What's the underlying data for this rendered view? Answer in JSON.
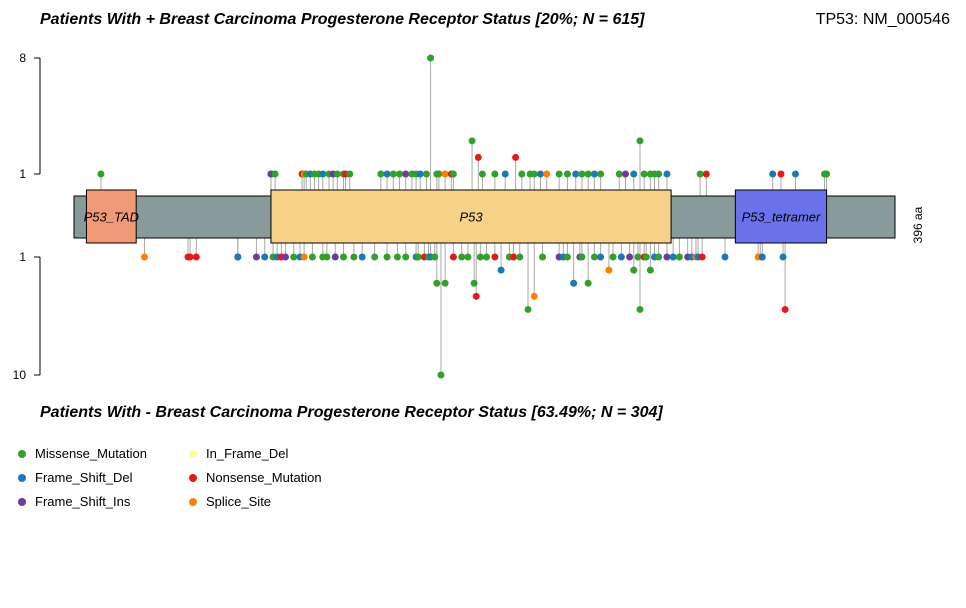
{
  "header": {
    "title_top": "Patients With + Breast Carcinoma Progesterone Receptor Status [20%; N = 615]",
    "title_bottom": "Patients With - Breast Carcinoma Progesterone Receptor Status [63.49%; N = 304]",
    "gene": "TP53: NM_000546"
  },
  "chart_data": {
    "type": "lollipop",
    "protein_length": 396,
    "protein_length_label": "396 aa",
    "top_axis": {
      "ticks": [
        1,
        8
      ],
      "labels": [
        "1",
        "8"
      ],
      "max": 8
    },
    "bottom_axis": {
      "ticks": [
        1,
        10
      ],
      "labels": [
        "1",
        "10"
      ],
      "max": 10
    },
    "colors": {
      "Missense_Mutation": "#33a02c",
      "Frame_Shift_Del": "#1f78b4",
      "Frame_Shift_Ins": "#6a3d9a",
      "In_Frame_Del": "#ffff99",
      "Nonsense_Mutation": "#e31a1c",
      "Splice_Site": "#ff7f00"
    },
    "backbone_color": "#889a99",
    "domains": [
      {
        "name": "P53_TAD",
        "start": 6,
        "end": 30,
        "color": "#f09a77"
      },
      {
        "name": "P53",
        "start": 95,
        "end": 288,
        "color": "#f5d287"
      },
      {
        "name": "P53_tetramer",
        "start": 319,
        "end": 363,
        "color": "#6a72eb"
      }
    ],
    "top_mutations": [
      {
        "pos": 13,
        "count": 1,
        "type": "Missense_Mutation"
      },
      {
        "pos": 95,
        "count": 1,
        "type": "Frame_Shift_Del"
      },
      {
        "pos": 95,
        "count": 1,
        "type": "Frame_Shift_Ins"
      },
      {
        "pos": 97,
        "count": 1,
        "type": "Missense_Mutation"
      },
      {
        "pos": 110,
        "count": 1,
        "type": "Nonsense_Mutation"
      },
      {
        "pos": 111,
        "count": 1,
        "type": "Splice_Site"
      },
      {
        "pos": 112,
        "count": 1,
        "type": "Missense_Mutation"
      },
      {
        "pos": 114,
        "count": 1,
        "type": "Frame_Shift_Del"
      },
      {
        "pos": 116,
        "count": 1,
        "type": "Missense_Mutation"
      },
      {
        "pos": 118,
        "count": 1,
        "type": "Missense_Mutation"
      },
      {
        "pos": 120,
        "count": 1,
        "type": "Frame_Shift_Del"
      },
      {
        "pos": 123,
        "count": 1,
        "type": "Missense_Mutation"
      },
      {
        "pos": 125,
        "count": 1,
        "type": "Frame_Shift_Ins"
      },
      {
        "pos": 127,
        "count": 1,
        "type": "Missense_Mutation"
      },
      {
        "pos": 130,
        "count": 1,
        "type": "Missense_Mutation"
      },
      {
        "pos": 131,
        "count": 1,
        "type": "Nonsense_Mutation"
      },
      {
        "pos": 133,
        "count": 1,
        "type": "Missense_Mutation"
      },
      {
        "pos": 148,
        "count": 1,
        "type": "Missense_Mutation"
      },
      {
        "pos": 151,
        "count": 1,
        "type": "Frame_Shift_Del"
      },
      {
        "pos": 154,
        "count": 1,
        "type": "Missense_Mutation"
      },
      {
        "pos": 157,
        "count": 1,
        "type": "Missense_Mutation"
      },
      {
        "pos": 160,
        "count": 1,
        "type": "Frame_Shift_Ins"
      },
      {
        "pos": 163,
        "count": 1,
        "type": "Missense_Mutation"
      },
      {
        "pos": 165,
        "count": 1,
        "type": "Missense_Mutation"
      },
      {
        "pos": 167,
        "count": 1,
        "type": "Frame_Shift_Del"
      },
      {
        "pos": 170,
        "count": 1,
        "type": "Missense_Mutation"
      },
      {
        "pos": 172,
        "count": 8,
        "type": "Missense_Mutation"
      },
      {
        "pos": 175,
        "count": 1,
        "type": "Missense_Mutation"
      },
      {
        "pos": 176,
        "count": 1,
        "type": "Missense_Mutation"
      },
      {
        "pos": 179,
        "count": 1,
        "type": "Splice_Site"
      },
      {
        "pos": 182,
        "count": 1,
        "type": "Nonsense_Mutation"
      },
      {
        "pos": 183,
        "count": 1,
        "type": "Missense_Mutation"
      },
      {
        "pos": 192,
        "count": 3,
        "type": "Missense_Mutation"
      },
      {
        "pos": 195,
        "count": 2,
        "type": "Nonsense_Mutation"
      },
      {
        "pos": 197,
        "count": 1,
        "type": "Missense_Mutation"
      },
      {
        "pos": 203,
        "count": 1,
        "type": "Missense_Mutation"
      },
      {
        "pos": 208,
        "count": 1,
        "type": "Frame_Shift_Del"
      },
      {
        "pos": 213,
        "count": 2,
        "type": "Nonsense_Mutation"
      },
      {
        "pos": 216,
        "count": 1,
        "type": "Missense_Mutation"
      },
      {
        "pos": 220,
        "count": 1,
        "type": "Missense_Mutation"
      },
      {
        "pos": 222,
        "count": 1,
        "type": "Missense_Mutation"
      },
      {
        "pos": 225,
        "count": 1,
        "type": "Frame_Shift_Del"
      },
      {
        "pos": 228,
        "count": 1,
        "type": "Splice_Site"
      },
      {
        "pos": 234,
        "count": 1,
        "type": "Missense_Mutation"
      },
      {
        "pos": 238,
        "count": 1,
        "type": "Missense_Mutation"
      },
      {
        "pos": 242,
        "count": 1,
        "type": "Frame_Shift_Del"
      },
      {
        "pos": 245,
        "count": 1,
        "type": "Missense_Mutation"
      },
      {
        "pos": 248,
        "count": 1,
        "type": "Missense_Mutation"
      },
      {
        "pos": 251,
        "count": 1,
        "type": "Frame_Shift_Del"
      },
      {
        "pos": 254,
        "count": 1,
        "type": "Missense_Mutation"
      },
      {
        "pos": 263,
        "count": 1,
        "type": "Missense_Mutation"
      },
      {
        "pos": 266,
        "count": 1,
        "type": "Frame_Shift_Ins"
      },
      {
        "pos": 270,
        "count": 1,
        "type": "Frame_Shift_Del"
      },
      {
        "pos": 273,
        "count": 3,
        "type": "Missense_Mutation"
      },
      {
        "pos": 275,
        "count": 1,
        "type": "Missense_Mutation"
      },
      {
        "pos": 278,
        "count": 1,
        "type": "Missense_Mutation"
      },
      {
        "pos": 280,
        "count": 1,
        "type": "Missense_Mutation"
      },
      {
        "pos": 282,
        "count": 1,
        "type": "Missense_Mutation"
      },
      {
        "pos": 286,
        "count": 1,
        "type": "Frame_Shift_Del"
      },
      {
        "pos": 302,
        "count": 1,
        "type": "Missense_Mutation"
      },
      {
        "pos": 305,
        "count": 1,
        "type": "Nonsense_Mutation"
      },
      {
        "pos": 337,
        "count": 1,
        "type": "Frame_Shift_Del"
      },
      {
        "pos": 341,
        "count": 1,
        "type": "Nonsense_Mutation"
      },
      {
        "pos": 348,
        "count": 1,
        "type": "Frame_Shift_Del"
      },
      {
        "pos": 362,
        "count": 1,
        "type": "Missense_Mutation"
      },
      {
        "pos": 363,
        "count": 1,
        "type": "Missense_Mutation"
      }
    ],
    "bottom_mutations": [
      {
        "pos": 34,
        "count": 1,
        "type": "Splice_Site"
      },
      {
        "pos": 55,
        "count": 1,
        "type": "Nonsense_Mutation"
      },
      {
        "pos": 56,
        "count": 1,
        "type": "Nonsense_Mutation"
      },
      {
        "pos": 59,
        "count": 1,
        "type": "Nonsense_Mutation"
      },
      {
        "pos": 79,
        "count": 1,
        "type": "Frame_Shift_Ins"
      },
      {
        "pos": 79,
        "count": 1,
        "type": "Frame_Shift_Del"
      },
      {
        "pos": 88,
        "count": 1,
        "type": "Frame_Shift_Ins"
      },
      {
        "pos": 92,
        "count": 1,
        "type": "Frame_Shift_Del"
      },
      {
        "pos": 96,
        "count": 1,
        "type": "Missense_Mutation"
      },
      {
        "pos": 98,
        "count": 1,
        "type": "Frame_Shift_Del"
      },
      {
        "pos": 100,
        "count": 1,
        "type": "Nonsense_Mutation"
      },
      {
        "pos": 102,
        "count": 1,
        "type": "Frame_Shift_Ins"
      },
      {
        "pos": 106,
        "count": 1,
        "type": "Missense_Mutation"
      },
      {
        "pos": 109,
        "count": 1,
        "type": "Frame_Shift_Del"
      },
      {
        "pos": 111,
        "count": 1,
        "type": "Splice_Site"
      },
      {
        "pos": 115,
        "count": 1,
        "type": "Missense_Mutation"
      },
      {
        "pos": 120,
        "count": 1,
        "type": "Missense_Mutation"
      },
      {
        "pos": 122,
        "count": 1,
        "type": "Missense_Mutation"
      },
      {
        "pos": 126,
        "count": 1,
        "type": "Frame_Shift_Ins"
      },
      {
        "pos": 130,
        "count": 1,
        "type": "Missense_Mutation"
      },
      {
        "pos": 135,
        "count": 1,
        "type": "Missense_Mutation"
      },
      {
        "pos": 139,
        "count": 1,
        "type": "Frame_Shift_Del"
      },
      {
        "pos": 145,
        "count": 1,
        "type": "Missense_Mutation"
      },
      {
        "pos": 151,
        "count": 1,
        "type": "Missense_Mutation"
      },
      {
        "pos": 156,
        "count": 1,
        "type": "Missense_Mutation"
      },
      {
        "pos": 160,
        "count": 1,
        "type": "Missense_Mutation"
      },
      {
        "pos": 165,
        "count": 1,
        "type": "Frame_Shift_Del"
      },
      {
        "pos": 166,
        "count": 1,
        "type": "Missense_Mutation"
      },
      {
        "pos": 169,
        "count": 1,
        "type": "Nonsense_Mutation"
      },
      {
        "pos": 171,
        "count": 1,
        "type": "Missense_Mutation"
      },
      {
        "pos": 172,
        "count": 1,
        "type": "Frame_Shift_Del"
      },
      {
        "pos": 174,
        "count": 1,
        "type": "Missense_Mutation"
      },
      {
        "pos": 175,
        "count": 3,
        "type": "Missense_Mutation"
      },
      {
        "pos": 177,
        "count": 10,
        "type": "Missense_Mutation"
      },
      {
        "pos": 179,
        "count": 3,
        "type": "Missense_Mutation"
      },
      {
        "pos": 183,
        "count": 1,
        "type": "Nonsense_Mutation"
      },
      {
        "pos": 187,
        "count": 1,
        "type": "Missense_Mutation"
      },
      {
        "pos": 190,
        "count": 1,
        "type": "Missense_Mutation"
      },
      {
        "pos": 193,
        "count": 3,
        "type": "Missense_Mutation"
      },
      {
        "pos": 194,
        "count": 4,
        "type": "Nonsense_Mutation"
      },
      {
        "pos": 196,
        "count": 1,
        "type": "Missense_Mutation"
      },
      {
        "pos": 199,
        "count": 1,
        "type": "Missense_Mutation"
      },
      {
        "pos": 203,
        "count": 1,
        "type": "Nonsense_Mutation"
      },
      {
        "pos": 206,
        "count": 2,
        "type": "Frame_Shift_Del"
      },
      {
        "pos": 210,
        "count": 1,
        "type": "Missense_Mutation"
      },
      {
        "pos": 212,
        "count": 1,
        "type": "Nonsense_Mutation"
      },
      {
        "pos": 215,
        "count": 1,
        "type": "Missense_Mutation"
      },
      {
        "pos": 219,
        "count": 5,
        "type": "Missense_Mutation"
      },
      {
        "pos": 222,
        "count": 4,
        "type": "Splice_Site"
      },
      {
        "pos": 226,
        "count": 1,
        "type": "Missense_Mutation"
      },
      {
        "pos": 234,
        "count": 1,
        "type": "Frame_Shift_Ins"
      },
      {
        "pos": 236,
        "count": 1,
        "type": "Frame_Shift_Del"
      },
      {
        "pos": 238,
        "count": 1,
        "type": "Missense_Mutation"
      },
      {
        "pos": 241,
        "count": 3,
        "type": "Frame_Shift_Del"
      },
      {
        "pos": 244,
        "count": 1,
        "type": "Frame_Shift_Ins"
      },
      {
        "pos": 245,
        "count": 1,
        "type": "Missense_Mutation"
      },
      {
        "pos": 248,
        "count": 3,
        "type": "Missense_Mutation"
      },
      {
        "pos": 251,
        "count": 1,
        "type": "Missense_Mutation"
      },
      {
        "pos": 254,
        "count": 1,
        "type": "Frame_Shift_Del"
      },
      {
        "pos": 258,
        "count": 2,
        "type": "Splice_Site"
      },
      {
        "pos": 260,
        "count": 1,
        "type": "Missense_Mutation"
      },
      {
        "pos": 264,
        "count": 1,
        "type": "Frame_Shift_Del"
      },
      {
        "pos": 268,
        "count": 1,
        "type": "Frame_Shift_Ins"
      },
      {
        "pos": 270,
        "count": 2,
        "type": "Missense_Mutation"
      },
      {
        "pos": 272,
        "count": 1,
        "type": "Missense_Mutation"
      },
      {
        "pos": 273,
        "count": 5,
        "type": "Missense_Mutation"
      },
      {
        "pos": 275,
        "count": 1,
        "type": "Nonsense_Mutation"
      },
      {
        "pos": 276,
        "count": 1,
        "type": "Missense_Mutation"
      },
      {
        "pos": 278,
        "count": 2,
        "type": "Missense_Mutation"
      },
      {
        "pos": 280,
        "count": 1,
        "type": "Frame_Shift_Del"
      },
      {
        "pos": 282,
        "count": 1,
        "type": "Missense_Mutation"
      },
      {
        "pos": 286,
        "count": 1,
        "type": "Frame_Shift_Ins"
      },
      {
        "pos": 289,
        "count": 1,
        "type": "Frame_Shift_Del"
      },
      {
        "pos": 292,
        "count": 1,
        "type": "Missense_Mutation"
      },
      {
        "pos": 296,
        "count": 1,
        "type": "Frame_Shift_Ins"
      },
      {
        "pos": 298,
        "count": 1,
        "type": "Frame_Shift_Del"
      },
      {
        "pos": 300,
        "count": 1,
        "type": "Splice_Site"
      },
      {
        "pos": 301,
        "count": 1,
        "type": "Frame_Shift_Del"
      },
      {
        "pos": 303,
        "count": 1,
        "type": "Nonsense_Mutation"
      },
      {
        "pos": 314,
        "count": 1,
        "type": "Frame_Shift_Del"
      },
      {
        "pos": 330,
        "count": 1,
        "type": "Splice_Site"
      },
      {
        "pos": 331,
        "count": 1,
        "type": "Splice_Site"
      },
      {
        "pos": 332,
        "count": 1,
        "type": "Frame_Shift_Del"
      },
      {
        "pos": 342,
        "count": 1,
        "type": "Frame_Shift_Del"
      },
      {
        "pos": 343,
        "count": 5,
        "type": "Nonsense_Mutation"
      }
    ]
  },
  "legend": {
    "items": [
      {
        "label": "Missense_Mutation",
        "type": "Missense_Mutation"
      },
      {
        "label": "Frame_Shift_Del",
        "type": "Frame_Shift_Del"
      },
      {
        "label": "Frame_Shift_Ins",
        "type": "Frame_Shift_Ins"
      },
      {
        "label": "In_Frame_Del",
        "type": "In_Frame_Del"
      },
      {
        "label": "Nonsense_Mutation",
        "type": "Nonsense_Mutation"
      },
      {
        "label": "Splice_Site",
        "type": "Splice_Site"
      }
    ]
  }
}
